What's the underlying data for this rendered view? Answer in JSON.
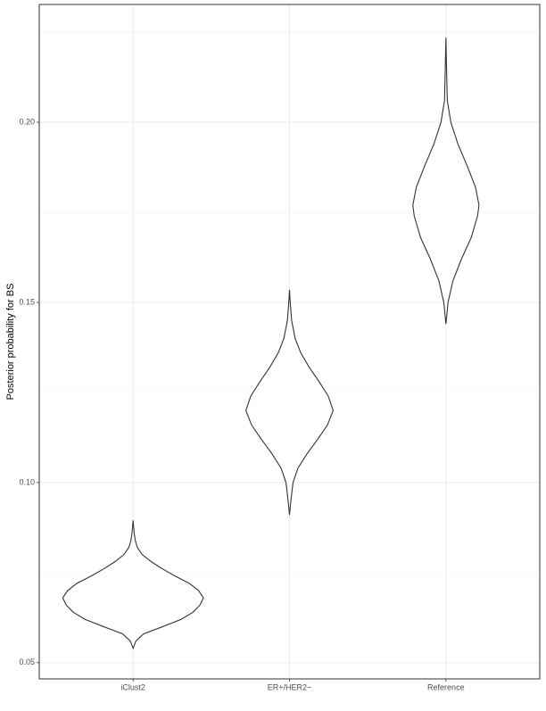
{
  "chart_data": {
    "type": "violin",
    "y_label": "Posterior probability for BS",
    "categories": [
      "iClust2",
      "ER+/HER2−",
      "Reference"
    ],
    "violins": [
      {
        "y": [
          0.054,
          0.056,
          0.058,
          0.06,
          0.062,
          0.064,
          0.066,
          0.068,
          0.07,
          0.072,
          0.074,
          0.076,
          0.078,
          0.08,
          0.082,
          0.084,
          0.086,
          0.0895
        ],
        "width": [
          0,
          0.04,
          0.15,
          0.42,
          0.68,
          0.85,
          0.95,
          1.0,
          0.93,
          0.8,
          0.6,
          0.42,
          0.26,
          0.13,
          0.06,
          0.03,
          0.015,
          0
        ]
      },
      {
        "y": [
          0.091,
          0.095,
          0.1,
          0.104,
          0.108,
          0.112,
          0.116,
          0.12,
          0.124,
          0.128,
          0.132,
          0.136,
          0.14,
          0.145,
          0.15,
          0.1535
        ],
        "width": [
          0,
          0.02,
          0.05,
          0.12,
          0.25,
          0.4,
          0.54,
          0.62,
          0.55,
          0.42,
          0.28,
          0.16,
          0.08,
          0.03,
          0.01,
          0
        ]
      },
      {
        "y": [
          0.144,
          0.15,
          0.156,
          0.162,
          0.168,
          0.174,
          0.177,
          0.182,
          0.188,
          0.194,
          0.2,
          0.206,
          0.214,
          0.2235
        ],
        "width": [
          0,
          0.03,
          0.1,
          0.22,
          0.36,
          0.45,
          0.47,
          0.42,
          0.3,
          0.17,
          0.07,
          0.02,
          0.01,
          0
        ]
      }
    ],
    "color": "#333333",
    "ylim": [
      0.0455,
      0.2327
    ],
    "yticks": [
      {
        "value": 0.05,
        "label": "0.05"
      },
      {
        "value": 0.1,
        "label": "0.10"
      },
      0.15,
      {
        "value": 0.2,
        "label": "0.20"
      }
    ],
    "yminor": [
      0.075,
      0.125,
      0.175,
      0.225
    ],
    "grid": true
  }
}
